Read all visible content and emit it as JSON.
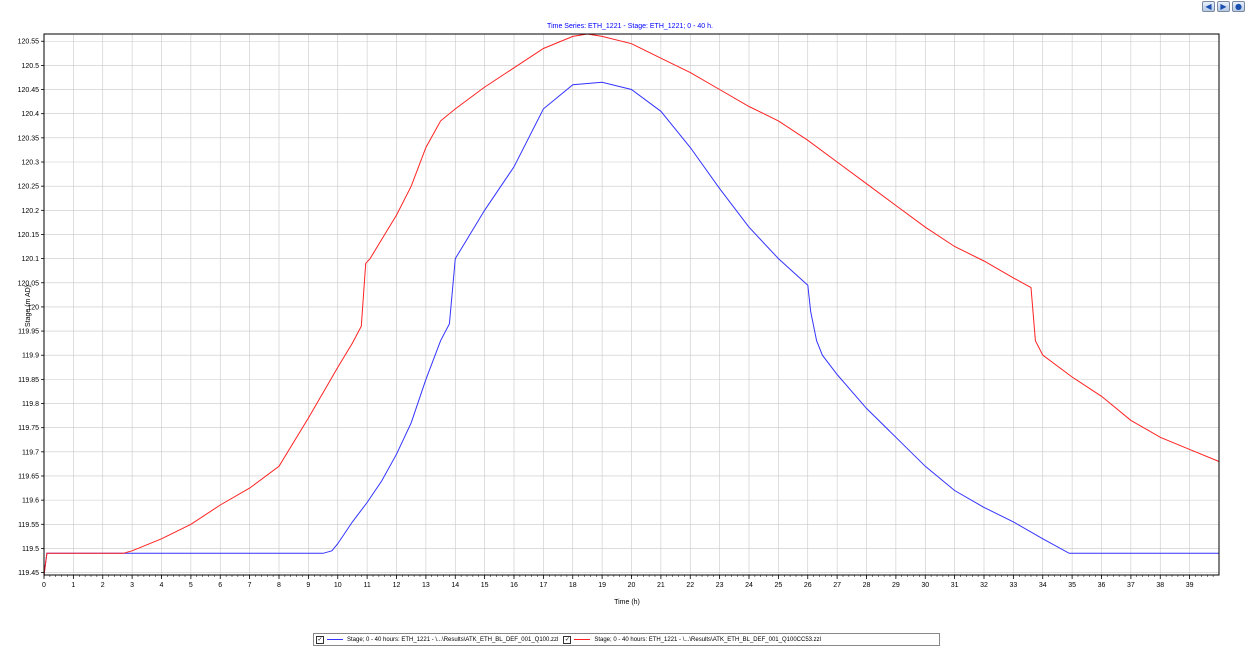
{
  "nav": {
    "back_icon": "back-arrow-icon",
    "forward_icon": "forward-arrow-icon",
    "zoom_icon": "zoom-icon"
  },
  "chart_data": {
    "type": "line",
    "title": "Time Series: ETH_1221 - Stage: ETH_1221; 0 - 40 h.",
    "xlabel": "Time (h)",
    "ylabel": "Stage (m AD)",
    "xlim": [
      0,
      40
    ],
    "ylim": [
      119.445,
      120.565
    ],
    "grid": true,
    "x_ticks": [
      0,
      1,
      2,
      3,
      4,
      5,
      6,
      7,
      8,
      9,
      10,
      11,
      12,
      13,
      14,
      15,
      16,
      17,
      18,
      19,
      20,
      21,
      22,
      23,
      24,
      25,
      26,
      27,
      28,
      29,
      30,
      31,
      32,
      33,
      34,
      35,
      36,
      37,
      38,
      39
    ],
    "y_ticks": [
      "119.45",
      "119.5",
      "119.55",
      "119.6",
      "119.65",
      "119.7",
      "119.75",
      "119.8",
      "119.85",
      "119.9",
      "119.95",
      "120",
      "120.05",
      "120.1",
      "120.15",
      "120.2",
      "120.25",
      "120.3",
      "120.35",
      "120.4",
      "120.45",
      "120.5",
      "120.55"
    ],
    "legend_position": "bottom",
    "series": [
      {
        "name": "Stage; 0 - 40 hours: ETH_1221 - \\...\\Results\\ATK_ETH_BL_DEF_001_Q100.zzl",
        "color": "#3333ff",
        "x": [
          0,
          0.1,
          0.2,
          9.5,
          9.8,
          10,
          10.5,
          11,
          11.5,
          12,
          12.5,
          13,
          13.5,
          13.8,
          14,
          14.3,
          15,
          16,
          17,
          18,
          19,
          20,
          21,
          22,
          23,
          24,
          25,
          26,
          26.1,
          26.3,
          26.5,
          27,
          28,
          29,
          30,
          31,
          32,
          33,
          34,
          34.9,
          35,
          36,
          37,
          38,
          39,
          40
        ],
        "y": [
          119.445,
          119.49,
          119.49,
          119.49,
          119.495,
          119.51,
          119.555,
          119.595,
          119.64,
          119.695,
          119.76,
          119.85,
          119.93,
          119.965,
          120.1,
          120.13,
          120.2,
          120.29,
          120.41,
          120.46,
          120.465,
          120.45,
          120.405,
          120.33,
          120.245,
          120.165,
          120.1,
          120.045,
          119.99,
          119.93,
          119.9,
          119.86,
          119.79,
          119.73,
          119.67,
          119.62,
          119.585,
          119.555,
          119.52,
          119.49,
          119.49,
          119.49,
          119.49,
          119.49,
          119.49,
          119.49
        ]
      },
      {
        "name": "Stage; 0 - 40 hours: ETH_1221 - \\...\\Results\\ATK_ETH_BL_DEF_001_Q100CC53.zzl",
        "color": "#ff2222",
        "x": [
          0,
          0.1,
          0.2,
          2.7,
          3,
          4,
          5,
          6,
          7,
          8,
          9,
          10,
          10.5,
          10.8,
          10.95,
          11.1,
          11.5,
          12,
          12.5,
          13,
          13.5,
          14,
          15,
          16,
          17,
          18,
          18.5,
          19,
          20,
          21,
          22,
          23,
          24,
          25,
          26,
          27,
          28,
          29,
          30,
          31,
          32,
          33,
          33.6,
          33.75,
          34,
          35,
          36,
          37,
          38,
          39,
          40
        ],
        "y": [
          119.445,
          119.49,
          119.49,
          119.49,
          119.495,
          119.52,
          119.55,
          119.59,
          119.625,
          119.67,
          119.77,
          119.875,
          119.925,
          119.96,
          120.09,
          120.1,
          120.14,
          120.19,
          120.25,
          120.33,
          120.385,
          120.41,
          120.455,
          120.495,
          120.535,
          120.56,
          120.565,
          120.56,
          120.545,
          120.515,
          120.485,
          120.45,
          120.415,
          120.385,
          120.345,
          120.3,
          120.255,
          120.21,
          120.165,
          120.125,
          120.095,
          120.06,
          120.04,
          119.93,
          119.9,
          119.855,
          119.815,
          119.765,
          119.73,
          119.705,
          119.68
        ]
      }
    ]
  }
}
